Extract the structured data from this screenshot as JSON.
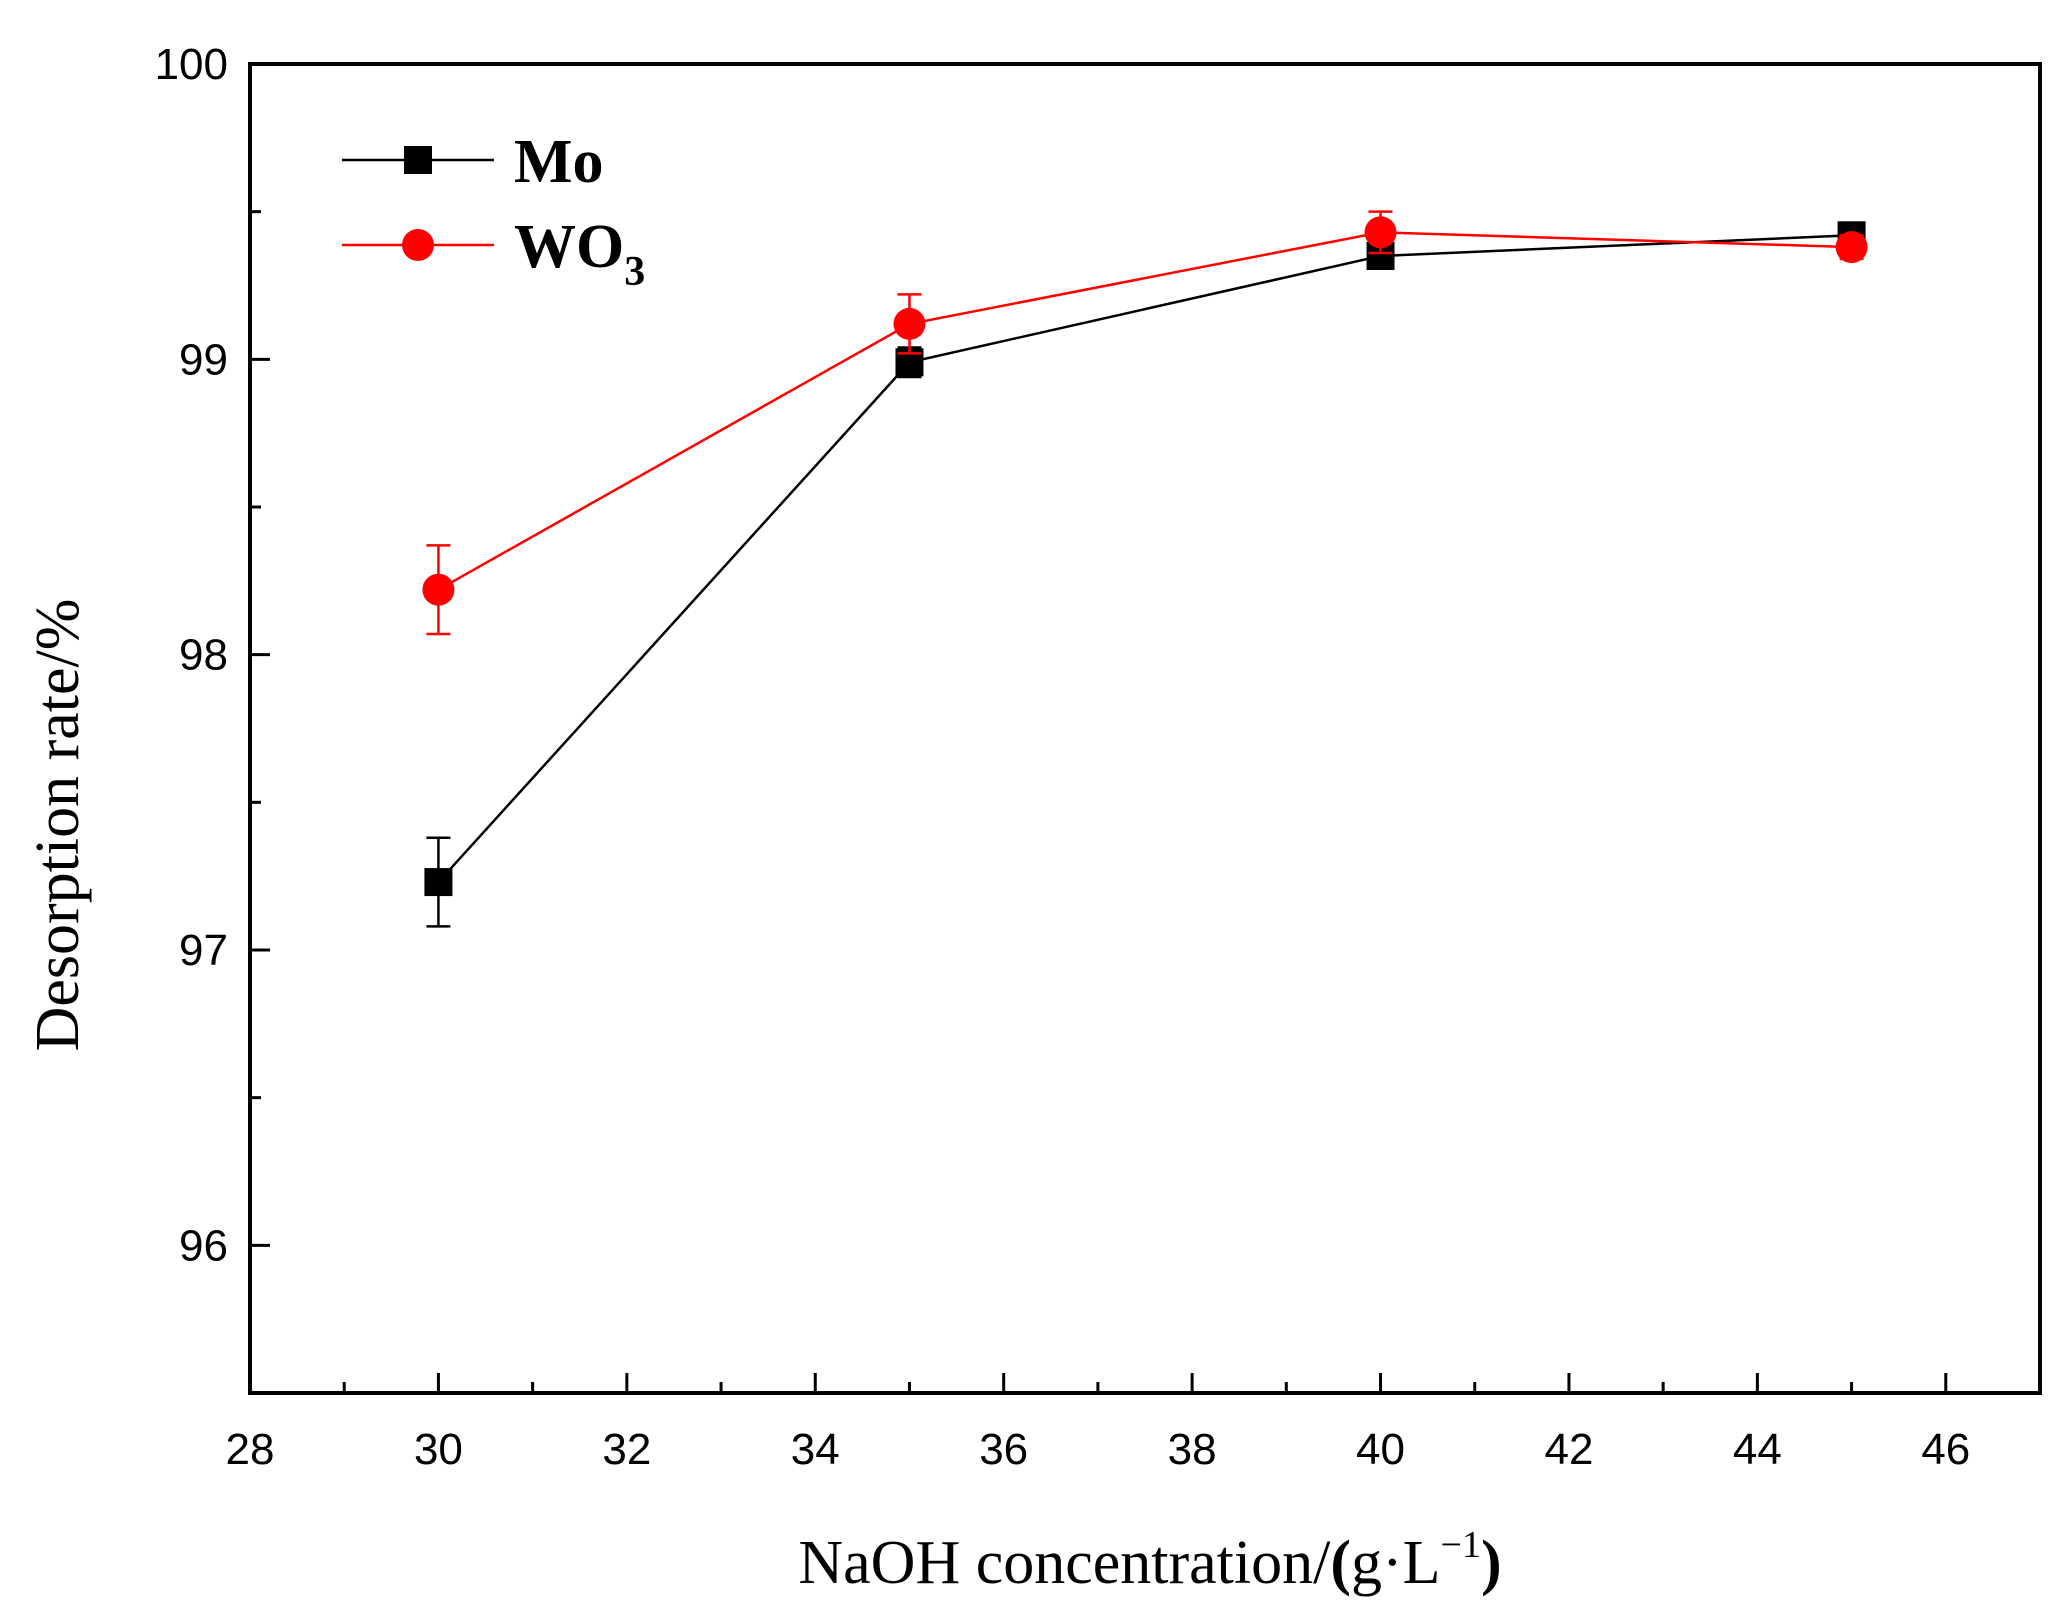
{
  "chart_data": {
    "type": "line",
    "title": "",
    "xlabel": {
      "text": "NaOH concentration/",
      "open_paren": "(",
      "unit_base": "g·L",
      "unit_exponent": "−1",
      "close_paren": ")"
    },
    "ylabel": "Desorption rate/%",
    "xlim": [
      28,
      47
    ],
    "ylim": [
      95.5,
      100
    ],
    "x_ticks": [
      28,
      30,
      32,
      34,
      36,
      38,
      40,
      42,
      44,
      46
    ],
    "x_tick_labels": [
      "28",
      "30",
      "32",
      "34",
      "36",
      "38",
      "40",
      "42",
      "44",
      "46"
    ],
    "y_ticks": [
      96,
      97,
      98,
      99,
      100
    ],
    "y_tick_labels": [
      "96",
      "97",
      "98",
      "99",
      "100"
    ],
    "x": [
      30,
      35,
      40,
      45
    ],
    "legend_position": "top-left",
    "series": [
      {
        "name": "Mo",
        "name_base": "Mo",
        "name_sub": "",
        "color": "#000000",
        "marker": "square",
        "values": [
          97.23,
          98.99,
          99.35,
          99.42
        ],
        "errors": [
          0.15,
          0.05,
          0.03,
          0.02
        ]
      },
      {
        "name": "WO3",
        "name_base": "WO",
        "name_sub": "3",
        "color": "#ff0000",
        "marker": "circle",
        "values": [
          98.22,
          99.12,
          99.43,
          99.38
        ],
        "errors": [
          0.15,
          0.1,
          0.07,
          0.04
        ]
      }
    ]
  }
}
